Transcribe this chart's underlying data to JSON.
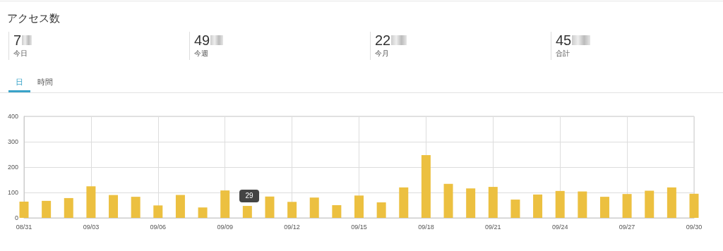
{
  "chart_data": {
    "type": "bar",
    "title": "アクセス数",
    "categories": [
      "08/31",
      null,
      null,
      "09/03",
      null,
      null,
      "09/06",
      null,
      null,
      "09/09",
      null,
      null,
      "09/12",
      null,
      null,
      "09/15",
      null,
      null,
      "09/18",
      null,
      null,
      "09/21",
      null,
      null,
      "09/24",
      null,
      null,
      "09/27",
      null,
      null,
      "09/30"
    ],
    "values": [
      64,
      67,
      78,
      124,
      90,
      83,
      49,
      90,
      41,
      108,
      47,
      84,
      63,
      80,
      50,
      88,
      61,
      120,
      247,
      134,
      116,
      122,
      72,
      92,
      106,
      104,
      83,
      94,
      107,
      120,
      95
    ],
    "color": "#ecc040",
    "ylim": [
      0,
      400
    ],
    "yticks": [
      0,
      100,
      200,
      300,
      400
    ],
    "grid": true,
    "annotations": [
      "7",
      "今日",
      "49",
      "今週",
      "22",
      "今月",
      "45",
      "合計",
      "日",
      "時間",
      "29"
    ]
  }
}
